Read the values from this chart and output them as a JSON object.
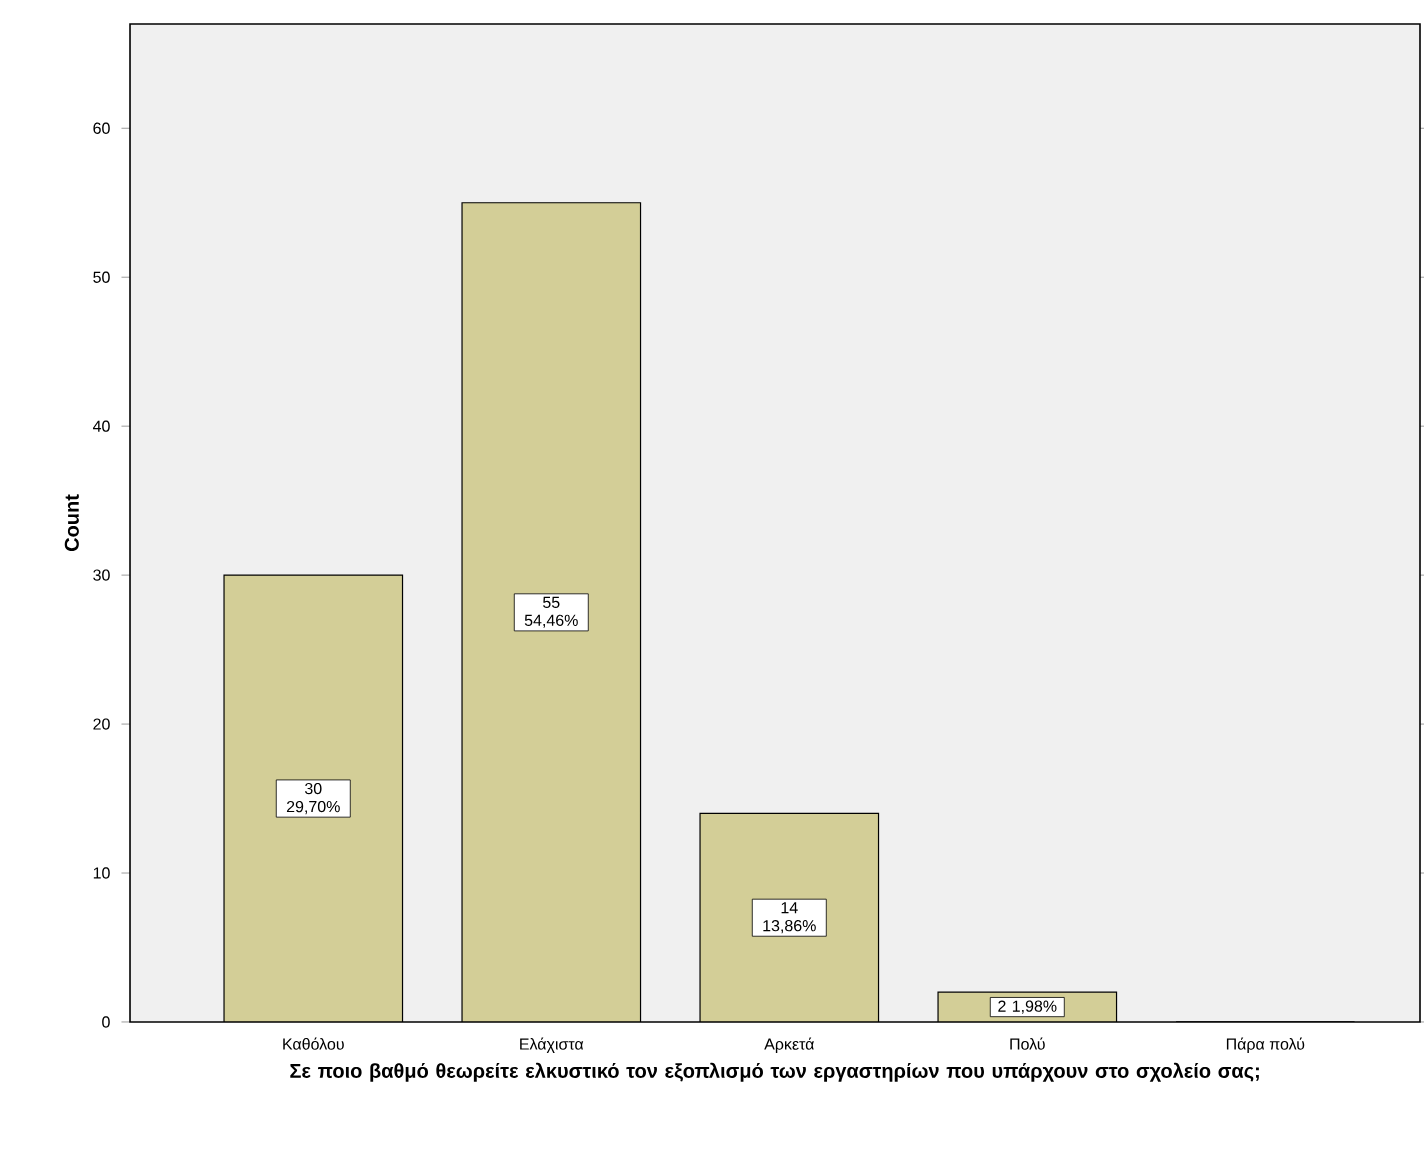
{
  "chart_data": {
    "type": "bar",
    "categories": [
      "Καθόλου",
      "Ελάχιστα",
      "Αρκετά",
      "Πολύ",
      "Πάρα πολύ"
    ],
    "values": [
      30,
      55,
      14,
      2,
      0
    ],
    "color": "#d3ce97",
    "value_labels": [
      "30 29,70%",
      "55 54,46%",
      "14 13,86%",
      "2 1,98%",
      null
    ],
    "xlabel": "Σε ποιο βαθμό θεωρείτε ελκυστικό τον εξοπλισμό των εργαστηρίων που υπάρχουν στο σχολείο σας;",
    "ylabel": "Count",
    "ylim": [
      0,
      67
    ],
    "yticks": [
      0,
      10,
      20,
      30,
      40,
      50,
      60
    ]
  }
}
